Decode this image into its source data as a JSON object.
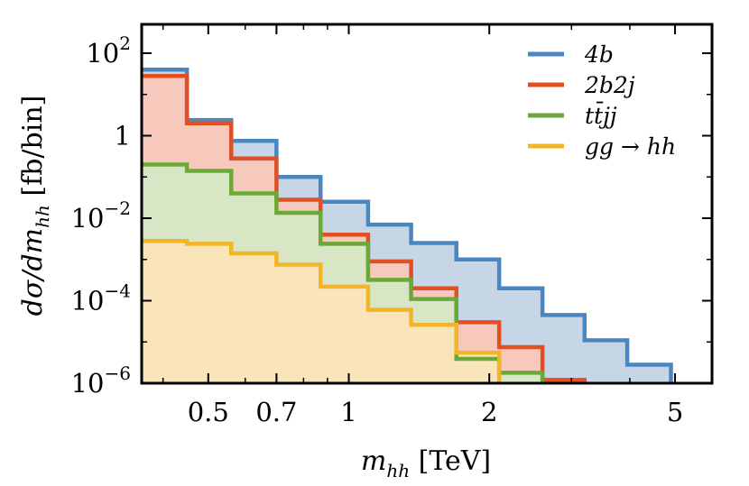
{
  "chart_data": {
    "type": "step-histogram",
    "xscale": "log",
    "yscale": "log",
    "xlim": [
      0.36,
      6.0
    ],
    "ylim": [
      1e-06,
      500
    ],
    "xlabel": "m_hh [TeV]",
    "ylabel": "dσ/dm_hh [fb/bin]",
    "xlabel_parts": {
      "sym": "m",
      "sub": "hh",
      "unit": " [TeV]"
    },
    "ylabel_parts": {
      "num": "dσ/dm",
      "sub": "hh",
      "unit": " [fb/bin]"
    },
    "x_ticks": [
      {
        "value": 0.5,
        "label": "0.5"
      },
      {
        "value": 0.7,
        "label": "0.7"
      },
      {
        "value": 1,
        "label": "1"
      },
      {
        "value": 2,
        "label": "2"
      },
      {
        "value": 5,
        "label": "5"
      }
    ],
    "y_ticks": [
      {
        "value": 1e-06,
        "base": "10",
        "exp": "−6"
      },
      {
        "value": 0.0001,
        "base": "10",
        "exp": "−4"
      },
      {
        "value": 0.01,
        "base": "10",
        "exp": "−2"
      },
      {
        "value": 1,
        "base": "1",
        "exp": ""
      },
      {
        "value": 100,
        "base": "10",
        "exp": "2"
      }
    ],
    "bin_edges": [
      0.36,
      0.45,
      0.56,
      0.7,
      0.87,
      1.1,
      1.36,
      1.7,
      2.1,
      2.6,
      3.2,
      3.95,
      4.9
    ],
    "series": [
      {
        "name": "4b",
        "color": "#4a87c0",
        "fill": "#c6d6e7",
        "values": [
          40,
          2.4,
          0.75,
          0.1,
          0.025,
          0.007,
          0.0025,
          0.001,
          0.0002,
          4.5e-05,
          1.1e-05,
          2.8e-06
        ]
      },
      {
        "name": "2b2j",
        "color": "#e24f22",
        "fill": "#f6c9bc",
        "values": [
          28,
          2.0,
          0.28,
          0.028,
          0.004,
          0.0009,
          0.0002,
          3e-05,
          7.5e-06,
          1.2e-06,
          null,
          null
        ]
      },
      {
        "name": "tt̄jj",
        "color": "#6aa838",
        "fill": "#d8e6c6",
        "values": [
          0.2,
          0.14,
          0.04,
          0.0135,
          0.0024,
          0.00032,
          0.00011,
          3.9e-06,
          1.8e-06,
          null,
          null,
          null
        ]
      },
      {
        "name": "gg → hh",
        "color": "#f1b526",
        "fill": "#fae5bb",
        "values": [
          0.0028,
          0.0024,
          0.0014,
          0.00075,
          0.00022,
          6e-05,
          2.6e-05,
          5.5e-06,
          null,
          null,
          null,
          null
        ]
      }
    ],
    "legend": {
      "position": "top-right",
      "entries": [
        {
          "name": "4b",
          "label": "4b"
        },
        {
          "name": "2b2j",
          "label": "2b2j"
        },
        {
          "name": "tt̄jj",
          "label": "tt̄jj"
        },
        {
          "name": "gg → hh",
          "label": "gg → hh"
        }
      ]
    }
  }
}
